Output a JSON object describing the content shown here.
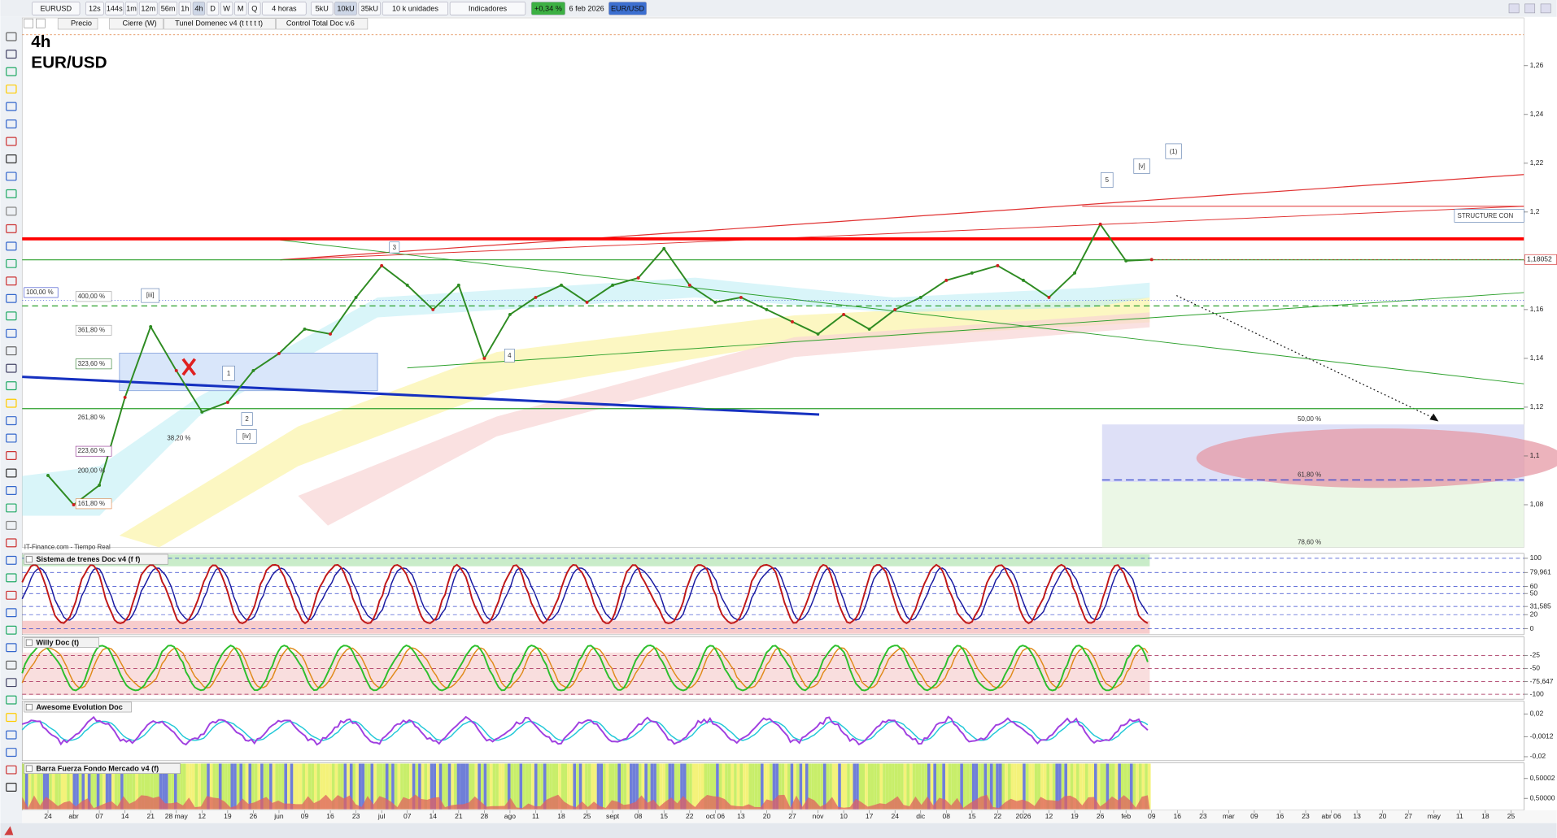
{
  "toolbar": {
    "symbol": "EURUSD",
    "intervals": [
      "12s",
      "144s",
      "1m",
      "12m",
      "56m",
      "1h",
      "4h",
      "D",
      "W",
      "M",
      "Q"
    ],
    "period": "4 horas",
    "units": [
      "5kU",
      "10kU",
      "35kU"
    ],
    "unit_menu": "10 k unidades",
    "indicators": "Indicadores",
    "change": "+0,34 %",
    "date": "6 feb 2026",
    "pair": "EUR/USD"
  },
  "legend_tags": [
    "Precio",
    "Cierre (W)",
    "Tunel Domenec v4 (t t t t t)",
    "Control Total Doc v.6"
  ],
  "chart_data": {
    "type": "line",
    "title": "4h",
    "subtitle": "EUR/USD",
    "color": "#2e8b22",
    "categories": [
      "24",
      "abr",
      "07",
      "14",
      "21",
      "28 may",
      "12",
      "19",
      "26",
      "jun",
      "09",
      "16",
      "23",
      "jul",
      "07",
      "14",
      "21",
      "28",
      "ago",
      "11",
      "18",
      "25",
      "sept",
      "08",
      "15",
      "22",
      "oct 06",
      "13",
      "20",
      "27",
      "nov",
      "10",
      "17",
      "24",
      "dic",
      "08",
      "15",
      "22",
      "2026",
      "12",
      "19",
      "26",
      "feb",
      "09",
      "16",
      "23",
      "mar",
      "09",
      "16",
      "23",
      "abr 06",
      "13",
      "20",
      "27",
      "may",
      "11",
      "18",
      "25"
    ],
    "values": [
      1.092,
      1.08,
      1.088,
      1.124,
      1.153,
      1.135,
      1.118,
      1.122,
      1.135,
      1.142,
      1.152,
      1.15,
      1.165,
      1.178,
      1.17,
      1.16,
      1.17,
      1.14,
      1.158,
      1.165,
      1.17,
      1.163,
      1.17,
      1.173,
      1.185,
      1.17,
      1.163,
      1.165,
      1.16,
      1.155,
      1.15,
      1.158,
      1.152,
      1.16,
      1.165,
      1.172,
      1.175,
      1.178,
      1.172,
      1.165,
      1.175,
      1.195,
      1.18,
      1.18052,
      null,
      null,
      null,
      null,
      null,
      null,
      null,
      null,
      null,
      null,
      null,
      null,
      null,
      null
    ],
    "ylim": [
      1.0625,
      1.2796
    ],
    "yticks": [
      {
        "value": 1.08,
        "label": "1,08"
      },
      {
        "value": 1.1,
        "label": "1,1"
      },
      {
        "value": 1.12,
        "label": "1,12"
      },
      {
        "value": 1.14,
        "label": "1,14"
      },
      {
        "value": 1.16,
        "label": "1,16"
      },
      {
        "value": 1.18,
        "label": "1,18"
      },
      {
        "value": 1.2,
        "label": "1,2"
      },
      {
        "value": 1.22,
        "label": "1,22"
      },
      {
        "value": 1.24,
        "label": "1,24"
      },
      {
        "value": 1.26,
        "label": "1,26"
      }
    ],
    "current_price": {
      "value": 1.18052,
      "label": "1,18052"
    },
    "levels": [
      {
        "value": 1.189,
        "color": "#ff0000"
      },
      {
        "value": 1.1804,
        "color": "#2ca02c"
      },
      {
        "value": 1.1194,
        "color": "#2ca02c"
      },
      {
        "value": 1.1615,
        "color": "#2ca02c"
      }
    ],
    "waves": [
      "3",
      "4",
      "5",
      "[v]",
      "(1)",
      "1",
      "2",
      "[iv]",
      "[iii]"
    ],
    "fib_left": [
      "100,00 %",
      "400,00 %",
      "361,80 %",
      "323,60 %",
      "261,80 %",
      "223,60 %",
      "200,00 %",
      "161,80 %",
      "38,20 %"
    ],
    "fib_right": [
      "50,00 %",
      "61,80 %",
      "78,60 %"
    ],
    "structure": "STRUCTURE CON",
    "source": "IT-Finance.com - Tiempo Real"
  },
  "panels": [
    {
      "title": "Sistema de trenes Doc v4 (f f)",
      "ylim": [
        -8.5,
        107
      ],
      "yticks": [
        100,
        {
          "value": 79.961,
          "label": "79,961"
        },
        60,
        50,
        {
          "value": 31.585,
          "label": "31,585"
        },
        20,
        0
      ]
    },
    {
      "title": "Willy Doc (t)",
      "ylim": [
        -109.6,
        11.5
      ],
      "yticks": [
        -25,
        -50,
        {
          "value": -75.647,
          "label": "-75,647"
        },
        -100
      ]
    },
    {
      "title": "Awesome Evolution Doc",
      "ylim": [
        -0.0237,
        0.0321
      ],
      "yticks": [
        {
          "value": 0.02,
          "label": "0,02"
        },
        {
          "value": -0.0012,
          "label": "-0,0012"
        },
        {
          "value": -0.02,
          "label": "-0,02"
        }
      ]
    },
    {
      "title": "Barra Fuerza Fondo Mercado v4 (f)",
      "ylim": [
        0.499988,
        0.500036
      ],
      "yticks": [
        {
          "value": 0.50002,
          "label": "0,50002"
        },
        {
          "value": 0.5,
          "label": "0,50000"
        }
      ]
    }
  ]
}
